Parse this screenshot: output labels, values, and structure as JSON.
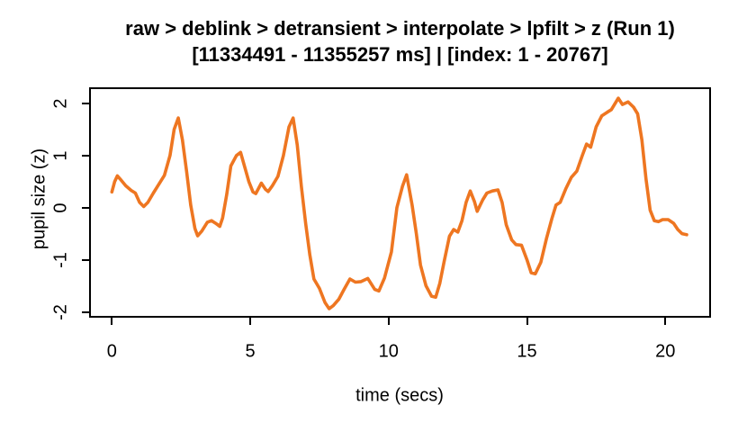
{
  "colors": {
    "line": "#EE7621",
    "axis": "#000000",
    "background": "#FFFFFF"
  },
  "chart_data": {
    "type": "line",
    "title": "raw > deblink > detransient > interpolate > lpfilt > z (Run 1)",
    "subtitle": "[11334491 - 11355257 ms] | [index: 1 - 20767]",
    "xlabel": "time (secs)",
    "ylabel": "pupil size (z)",
    "xlim": [
      -0.83,
      21.6
    ],
    "ylim": [
      -2.1,
      2.28
    ],
    "x_ticks": [
      0,
      5,
      10,
      15,
      20
    ],
    "y_ticks": [
      2,
      1,
      0,
      -1,
      -2
    ],
    "grid": false,
    "legend": "none",
    "series": [
      {
        "name": "pupil_size_z",
        "color": "#EE7621",
        "x": [
          0,
          0.1,
          0.2,
          0.3,
          0.5,
          0.7,
          0.85,
          1.0,
          1.15,
          1.3,
          1.5,
          1.7,
          1.9,
          2.1,
          2.25,
          2.4,
          2.55,
          2.7,
          2.85,
          3.0,
          3.1,
          3.25,
          3.45,
          3.6,
          3.75,
          3.9,
          4.0,
          4.15,
          4.3,
          4.5,
          4.65,
          4.8,
          4.95,
          5.1,
          5.2,
          5.4,
          5.55,
          5.65,
          5.8,
          6.0,
          6.2,
          6.4,
          6.55,
          6.7,
          6.85,
          7.0,
          7.15,
          7.3,
          7.5,
          7.7,
          7.85,
          8.0,
          8.2,
          8.4,
          8.6,
          8.8,
          9.0,
          9.25,
          9.5,
          9.65,
          9.85,
          10.1,
          10.3,
          10.5,
          10.65,
          10.85,
          11.0,
          11.15,
          11.35,
          11.55,
          11.7,
          11.85,
          12.0,
          12.2,
          12.35,
          12.5,
          12.65,
          12.8,
          12.95,
          13.1,
          13.2,
          13.4,
          13.55,
          13.75,
          13.95,
          14.1,
          14.25,
          14.45,
          14.6,
          14.8,
          15.0,
          15.15,
          15.3,
          15.5,
          15.7,
          15.9,
          16.05,
          16.2,
          16.4,
          16.6,
          16.8,
          17.0,
          17.15,
          17.3,
          17.5,
          17.7,
          17.9,
          18.05,
          18.3,
          18.45,
          18.65,
          18.85,
          19.0,
          19.15,
          19.3,
          19.45,
          19.6,
          19.75,
          19.9,
          20.1,
          20.3,
          20.45,
          20.6,
          20.77
        ],
        "y": [
          0.3,
          0.5,
          0.61,
          0.55,
          0.42,
          0.33,
          0.28,
          0.1,
          0.02,
          0.1,
          0.28,
          0.45,
          0.62,
          1.0,
          1.5,
          1.72,
          1.3,
          0.7,
          0.05,
          -0.4,
          -0.54,
          -0.45,
          -0.28,
          -0.25,
          -0.3,
          -0.36,
          -0.2,
          0.25,
          0.8,
          1.0,
          1.06,
          0.78,
          0.5,
          0.3,
          0.27,
          0.47,
          0.35,
          0.31,
          0.42,
          0.6,
          1.0,
          1.55,
          1.72,
          1.2,
          0.4,
          -0.3,
          -0.9,
          -1.37,
          -1.55,
          -1.82,
          -1.94,
          -1.88,
          -1.76,
          -1.56,
          -1.37,
          -1.43,
          -1.42,
          -1.36,
          -1.57,
          -1.6,
          -1.35,
          -0.85,
          0.0,
          0.41,
          0.63,
          0.05,
          -0.5,
          -1.1,
          -1.5,
          -1.7,
          -1.72,
          -1.45,
          -1.05,
          -0.55,
          -0.42,
          -0.47,
          -0.25,
          0.1,
          0.32,
          0.12,
          -0.07,
          0.15,
          0.28,
          0.32,
          0.34,
          0.1,
          -0.33,
          -0.62,
          -0.71,
          -0.72,
          -1.0,
          -1.25,
          -1.27,
          -1.05,
          -0.6,
          -0.21,
          0.05,
          0.1,
          0.36,
          0.58,
          0.7,
          1.0,
          1.22,
          1.16,
          1.55,
          1.76,
          1.83,
          1.88,
          2.1,
          1.98,
          2.03,
          1.93,
          1.8,
          1.3,
          0.55,
          -0.05,
          -0.25,
          -0.27,
          -0.23,
          -0.23,
          -0.3,
          -0.42,
          -0.5,
          -0.52
        ]
      }
    ]
  }
}
